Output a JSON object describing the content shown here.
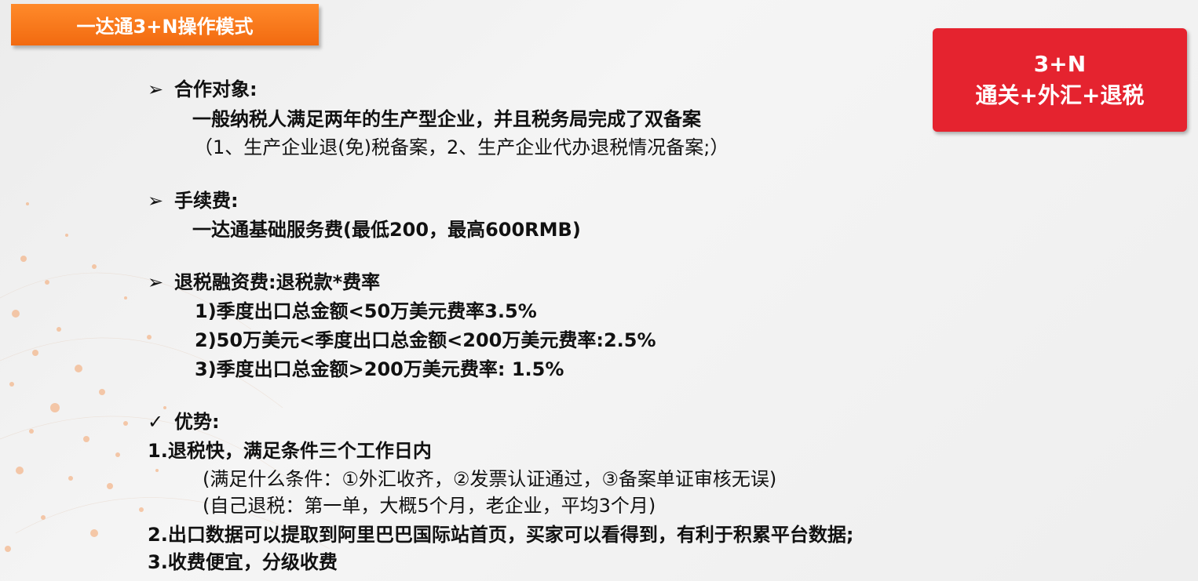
{
  "header": {
    "title": "一达通3+N操作模式"
  },
  "badge": {
    "line1": "3+N",
    "line2": "通关+外汇+退税"
  },
  "sections": {
    "partner": {
      "marker": "➢",
      "heading": "合作对象:",
      "line1": "一般纳税人满足两年的生产型企业，并且税务局完成了双备案",
      "line2": "（1、生产企业退(免)税备案，2、生产企业代办退税情况备案;）"
    },
    "fee": {
      "marker": "➢",
      "heading": "手续费:",
      "line1": "一达通基础服务费(最低200，最高600RMB)"
    },
    "financing": {
      "marker": "➢",
      "heading": "退税融资费:退税款*费率",
      "items": [
        "1)季度出口总金额<50万美元费率3.5%",
        "2)50万美元<季度出口总金额<200万美元费率:2.5%",
        "3)季度出口总金额>200万美元费率: 1.5%"
      ]
    },
    "advantages": {
      "marker": "✓",
      "heading": "优势:",
      "item1": "1.退税快，满足条件三个工作日内",
      "item1_sub1": "(满足什么条件：①外汇收齐，②发票认证通过，③备案单证审核无误)",
      "item1_sub2": "(自己退税：第一单，大概5个月，老企业，平均3个月)",
      "item2": "2.出口数据可以提取到阿里巴巴国际站首页，买家可以看得到，有利于积累平台数据;",
      "item3": "3.收费便宜，分级收费"
    }
  },
  "colors": {
    "title_bg": "#f26a10",
    "badge_bg": "#e5232f",
    "decor_dots": "#f4a36a"
  }
}
